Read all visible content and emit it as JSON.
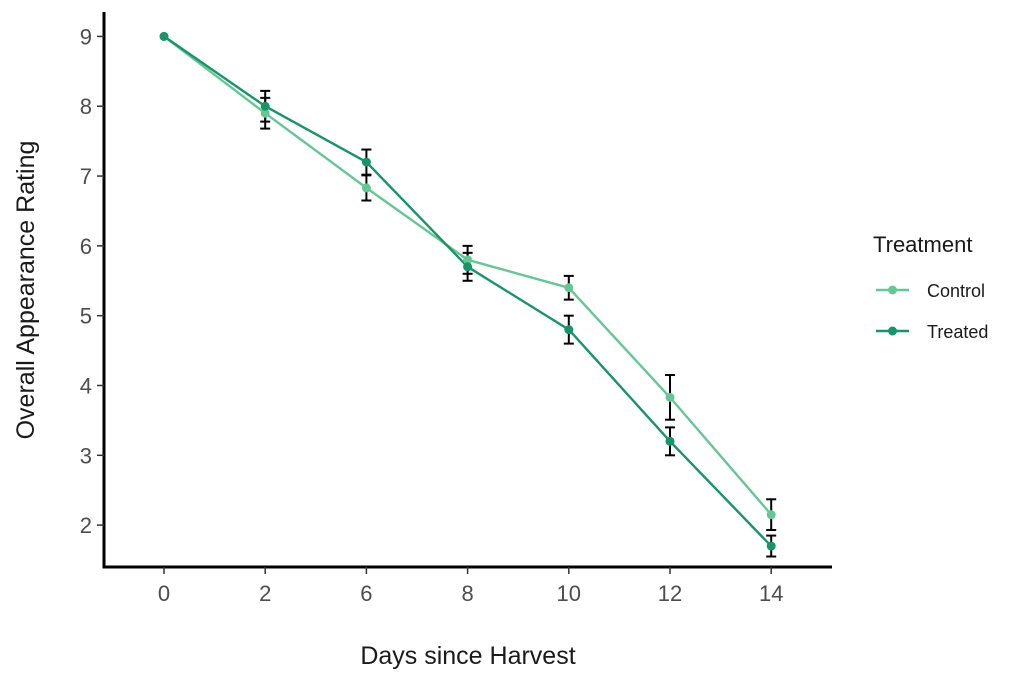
{
  "chart_data": {
    "type": "line",
    "x_labels": [
      "0",
      "2",
      "6",
      "8",
      "10",
      "12",
      "14"
    ],
    "xlabel": "Days since Harvest",
    "ylabel": "Overall Appearance Rating",
    "ylim": [
      1.4,
      9.35
    ],
    "yticks": [
      2,
      3,
      4,
      5,
      6,
      7,
      8,
      9
    ],
    "legend": {
      "title": "Treatment",
      "position": "right"
    },
    "grid": false,
    "series": [
      {
        "name": "Control",
        "color": "#66c795",
        "values": [
          9.0,
          7.9,
          6.83,
          5.8,
          5.4,
          3.83,
          2.15
        ],
        "errors": [
          0.0,
          0.22,
          0.18,
          0.2,
          0.17,
          0.32,
          0.22
        ]
      },
      {
        "name": "Treated",
        "color": "#199468",
        "values": [
          9.0,
          8.0,
          7.2,
          5.7,
          4.8,
          3.2,
          1.7
        ],
        "errors": [
          0.0,
          0.22,
          0.18,
          0.2,
          0.2,
          0.2,
          0.15
        ]
      }
    ]
  }
}
